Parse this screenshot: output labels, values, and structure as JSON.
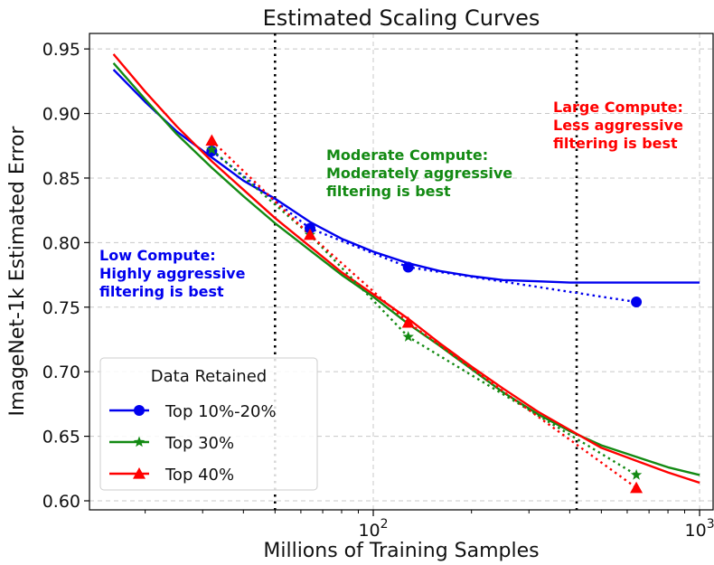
{
  "chart_data": {
    "type": "line",
    "title": "Estimated Scaling Curves",
    "xlabel": "Millions of Training Samples",
    "ylabel": "ImageNet-1k Estimated Error",
    "xscale": "log",
    "xlim": [
      13.5,
      1100
    ],
    "ylim": [
      0.593,
      0.962
    ],
    "grid": true,
    "x_ticks": [
      {
        "value": 100,
        "base": "10",
        "exp": "2"
      },
      {
        "value": 1000,
        "base": "10",
        "exp": "3"
      }
    ],
    "y_ticks": [
      0.6,
      0.65,
      0.7,
      0.75,
      0.8,
      0.85,
      0.9,
      0.95
    ],
    "y_tick_labels": [
      "0.60",
      "0.65",
      "0.70",
      "0.75",
      "0.80",
      "0.85",
      "0.90",
      "0.95"
    ],
    "vlines": [
      50,
      420
    ],
    "legend": {
      "title": "Data Retained",
      "position": "lower-left"
    },
    "series": [
      {
        "name": "Top 10%-20%",
        "color": "#0000ee",
        "marker": "circle",
        "points": [
          [
            32,
            0.871
          ],
          [
            64,
            0.811
          ],
          [
            128,
            0.781
          ],
          [
            640,
            0.754
          ]
        ],
        "fit": [
          [
            16,
            0.934
          ],
          [
            20,
            0.909
          ],
          [
            25,
            0.886
          ],
          [
            32,
            0.866
          ],
          [
            40,
            0.848
          ],
          [
            50,
            0.834
          ],
          [
            64,
            0.816
          ],
          [
            80,
            0.803
          ],
          [
            100,
            0.793
          ],
          [
            128,
            0.784
          ],
          [
            160,
            0.778
          ],
          [
            200,
            0.774
          ],
          [
            250,
            0.771
          ],
          [
            320,
            0.77
          ],
          [
            400,
            0.769
          ],
          [
            500,
            0.769
          ],
          [
            640,
            0.769
          ],
          [
            800,
            0.769
          ],
          [
            1000,
            0.769
          ]
        ]
      },
      {
        "name": "Top 30%",
        "color": "#138a13",
        "marker": "star",
        "points": [
          [
            32,
            0.872
          ],
          [
            64,
            0.806
          ],
          [
            128,
            0.727
          ],
          [
            640,
            0.62
          ]
        ],
        "fit": [
          [
            16,
            0.939
          ],
          [
            20,
            0.911
          ],
          [
            25,
            0.884
          ],
          [
            32,
            0.858
          ],
          [
            40,
            0.836
          ],
          [
            50,
            0.815
          ],
          [
            64,
            0.794
          ],
          [
            80,
            0.775
          ],
          [
            100,
            0.758
          ],
          [
            128,
            0.737
          ],
          [
            160,
            0.72
          ],
          [
            200,
            0.702
          ],
          [
            250,
            0.684
          ],
          [
            320,
            0.667
          ],
          [
            400,
            0.654
          ],
          [
            500,
            0.643
          ],
          [
            640,
            0.634
          ],
          [
            800,
            0.626
          ],
          [
            1000,
            0.62
          ]
        ]
      },
      {
        "name": "Top 40%",
        "color": "#ff0000",
        "marker": "triangle",
        "points": [
          [
            32,
            0.879
          ],
          [
            64,
            0.806
          ],
          [
            128,
            0.738
          ],
          [
            640,
            0.61
          ]
        ],
        "fit": [
          [
            16,
            0.946
          ],
          [
            20,
            0.917
          ],
          [
            25,
            0.89
          ],
          [
            32,
            0.863
          ],
          [
            40,
            0.841
          ],
          [
            50,
            0.819
          ],
          [
            64,
            0.797
          ],
          [
            80,
            0.777
          ],
          [
            100,
            0.76
          ],
          [
            128,
            0.741
          ],
          [
            160,
            0.722
          ],
          [
            200,
            0.704
          ],
          [
            250,
            0.687
          ],
          [
            320,
            0.669
          ],
          [
            400,
            0.655
          ],
          [
            500,
            0.641
          ],
          [
            640,
            0.631
          ],
          [
            800,
            0.622
          ],
          [
            1000,
            0.614
          ]
        ]
      }
    ],
    "annotations": [
      {
        "lines": [
          "Low Compute:",
          "Highly aggressive",
          "filtering is best"
        ],
        "color": "#0000ee"
      },
      {
        "lines": [
          "Moderate Compute:",
          "Moderately aggressive",
          "filtering is best"
        ],
        "color": "#138a13"
      },
      {
        "lines": [
          "Large Compute:",
          "Less aggressive",
          "filtering is best"
        ],
        "color": "#ff0000"
      }
    ]
  }
}
